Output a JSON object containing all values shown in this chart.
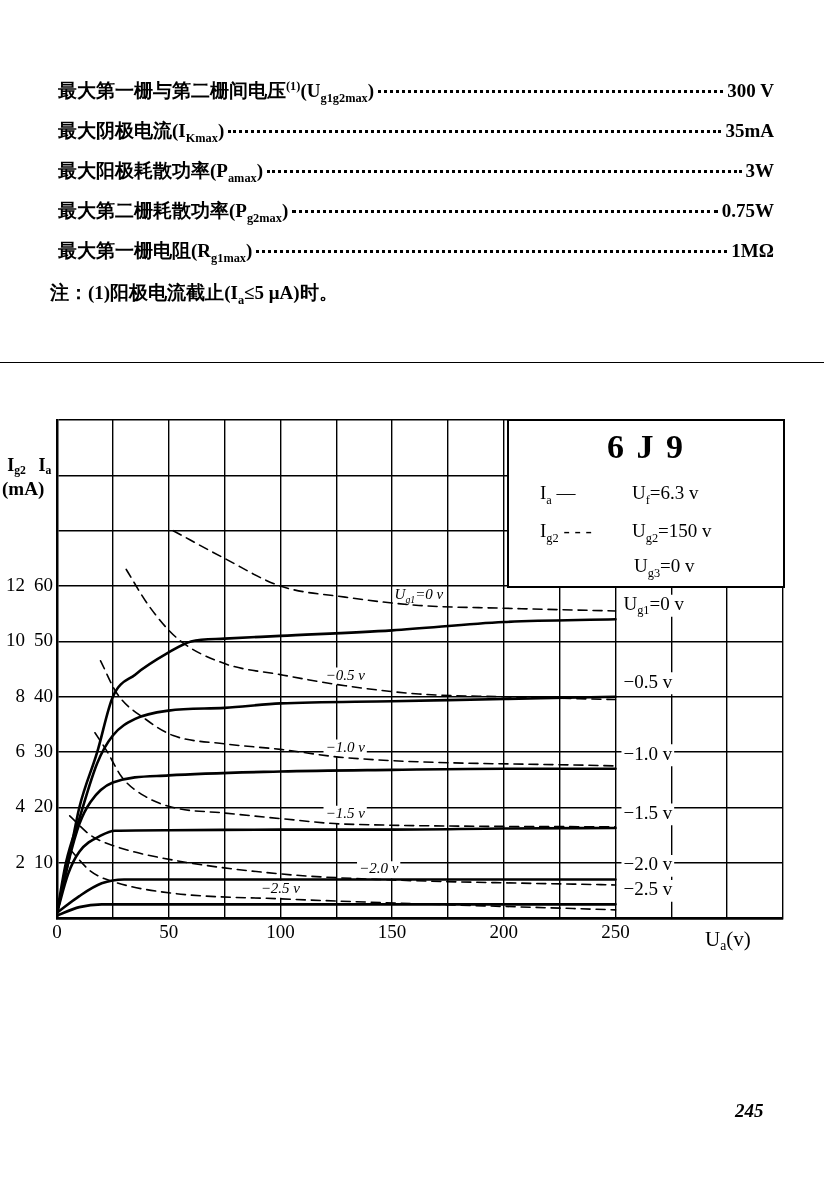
{
  "chart_data": {
    "type": "line",
    "title": "6 J 9",
    "xlabel": "U$_{a}$(v)",
    "ylabel": "I$_{a}$",
    "y2label": "I$_{g2}$",
    "xlim": [
      0,
      325
    ],
    "xticks": [
      0,
      {
        "value": 25,
        "label": null
      },
      50,
      {
        "value": 75,
        "label": null
      },
      100,
      {
        "value": 125,
        "label": null
      },
      150,
      {
        "value": 175,
        "label": null
      },
      200,
      {
        "value": 225,
        "label": null
      },
      250,
      {
        "value": 275,
        "label": null
      },
      {
        "value": 300,
        "label": null
      },
      {
        "value": 325,
        "label": null
      }
    ],
    "ylim": [
      0,
      90
    ],
    "yticks": [
      {
        "value": 0,
        "label": null
      },
      10,
      20,
      30,
      40,
      50,
      60,
      {
        "value": 70,
        "label": null
      },
      {
        "value": 80,
        "label": null
      },
      {
        "value": 90,
        "label": null
      }
    ],
    "y2lim": [
      0,
      18
    ],
    "y2ticks": [
      2,
      4,
      6,
      8,
      10,
      12
    ],
    "grid": true,
    "legend": false,
    "marker": "none",
    "series": [
      {
        "name": "U$_{g1}$=0 v",
        "color": "#000000",
        "line_style": "solid",
        "x": [
          0,
          5,
          10,
          18,
          25,
          35,
          50,
          60,
          75,
          100,
          150,
          200,
          250
        ],
        "values": [
          1,
          10,
          20,
          30,
          40,
          44,
          48,
          50,
          50.5,
          51,
          52,
          53.5,
          54
        ]
      },
      {
        "name": "−0.5 v",
        "color": "#000000",
        "line_style": "solid",
        "x": [
          0,
          4,
          10,
          18,
          25,
          35,
          50,
          75,
          100,
          150,
          200,
          250
        ],
        "values": [
          1,
          10,
          18,
          28,
          33,
          36,
          37.5,
          38,
          38.8,
          39.2,
          39.6,
          40
        ]
      },
      {
        "name": "−1.0 v",
        "color": "#000000",
        "line_style": "solid",
        "x": [
          0,
          5,
          10,
          15,
          25,
          50,
          100,
          150,
          200,
          250
        ],
        "values": [
          1,
          10,
          17,
          21,
          24.5,
          25.8,
          26.5,
          26.8,
          27,
          27
        ]
      },
      {
        "name": "−1.5 v",
        "color": "#000000",
        "line_style": "solid",
        "x": [
          0,
          5,
          10,
          20,
          26,
          50,
          100,
          150,
          200,
          250
        ],
        "values": [
          1,
          8,
          12,
          15,
          15.8,
          15.9,
          16,
          16,
          16.2,
          16.3
        ]
      },
      {
        "name": "−2.0 v",
        "color": "#000000",
        "line_style": "solid",
        "x": [
          0,
          10,
          20,
          30,
          50,
          100,
          150,
          200,
          250
        ],
        "values": [
          1,
          4,
          6.3,
          7,
          7,
          7,
          7,
          7,
          7
        ]
      },
      {
        "name": "−2.5 v",
        "color": "#000000",
        "line_style": "solid",
        "x": [
          0,
          10,
          20,
          50,
          250
        ],
        "values": [
          0.5,
          2,
          2.5,
          2.5,
          2.5
        ]
      },
      {
        "name": "U$_{g1}$=0 v",
        "color": "#000000",
        "line_style": "dashed",
        "axis": "y2",
        "x": [
          52,
          75,
          100,
          129,
          162,
          200,
          250
        ],
        "values": [
          14.0,
          13.0,
          12.0,
          11.6,
          11.3,
          11.2,
          11.1
        ]
      },
      {
        "name": "−0.5 v",
        "color": "#000000",
        "line_style": "dashed",
        "axis": "y2",
        "x": [
          31,
          41,
          54,
          75,
          100,
          129,
          162,
          200,
          250
        ],
        "values": [
          12.6,
          11.3,
          10.1,
          9.2,
          8.8,
          8.4,
          8.1,
          8.0,
          7.9
        ]
      },
      {
        "name": "−1.0 v",
        "color": "#000000",
        "line_style": "dashed",
        "axis": "y2",
        "x": [
          19.5,
          27,
          39.5,
          52,
          75,
          100,
          129,
          250
        ],
        "values": [
          9.3,
          8.1,
          7.2,
          6.6,
          6.3,
          6.1,
          5.8,
          5.5
        ]
      },
      {
        "name": "−1.5 v",
        "color": "#000000",
        "line_style": "dashed",
        "axis": "y2",
        "x": [
          17,
          22.6,
          29,
          39.5,
          52,
          75,
          100,
          129,
          250
        ],
        "values": [
          6.7,
          6.0,
          5.1,
          4.4,
          4.0,
          3.8,
          3.6,
          3.4,
          3.3
        ]
      },
      {
        "name": "−2.0 v",
        "color": "#000000",
        "line_style": "dashed",
        "axis": "y2",
        "x": [
          5.7,
          15,
          26,
          52,
          100,
          144,
          250
        ],
        "values": [
          3.7,
          3.0,
          2.6,
          2.1,
          1.6,
          1.4,
          1.2
        ]
      },
      {
        "name": "−2.5 v",
        "color": "#000000",
        "line_style": "dashed",
        "axis": "y2",
        "x": [
          5.7,
          15,
          26,
          52,
          100,
          250
        ],
        "values": [
          2.5,
          1.7,
          1.3,
          0.9,
          0.7,
          0.3
        ]
      }
    ],
    "annotations": [
      "最大第一栅与第二栅间电压$^{(1)}$(U$_{g1g2max}$)",
      "300 V",
      "最大阴极电流(I$_{Kmax}$)",
      "35mA",
      "最大阳极耗散功率(P$_{amax}$)",
      "3W",
      "最大第二栅耗散功率(P$_{g2max}$)",
      "0.75W",
      "最大第一栅电阻(R$_{g1max}$)",
      "1MΩ",
      "注：(1)阳极电流截止(I$_{a}$≤5 μA)时。",
      "(mA)",
      "I$_{a}$ —",
      "I$_{g2}$ - - -",
      "U$_{f}$=6.3 v",
      "U$_{g2}$=150 v",
      "U$_{g3}$=0 v",
      "245"
    ]
  }
}
